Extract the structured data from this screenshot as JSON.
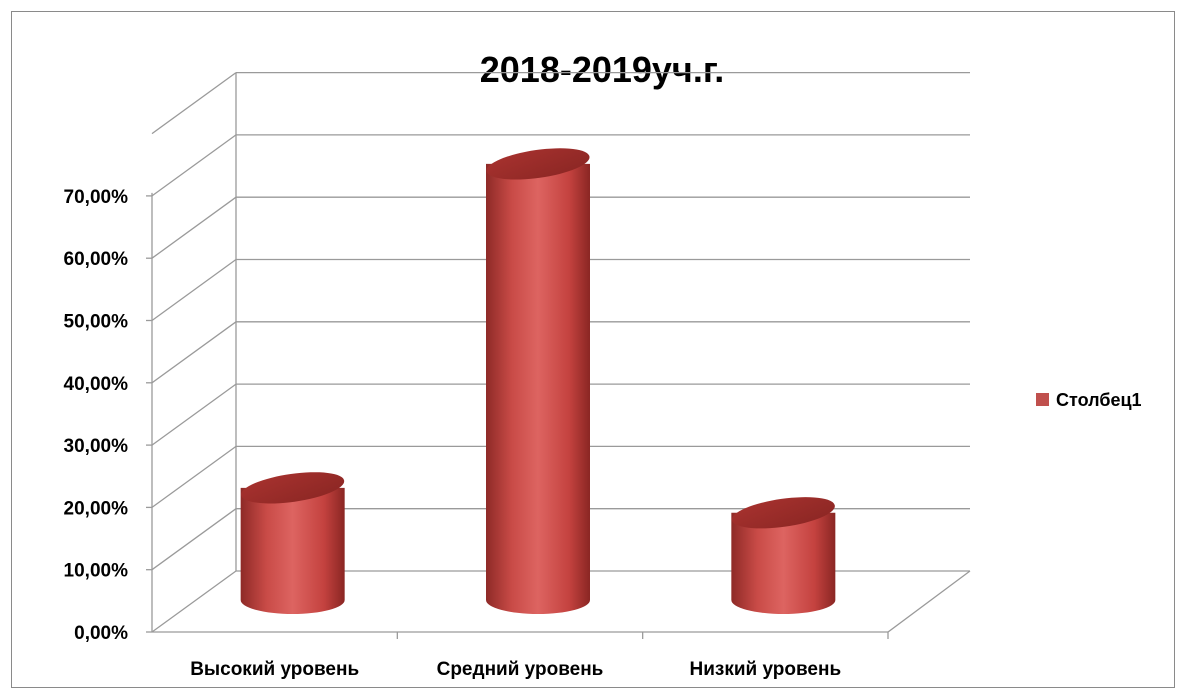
{
  "chart_data": {
    "type": "bar",
    "title": "2018-2019уч.г.",
    "categories": [
      "Высокий уровень",
      "Средний уровень",
      "Низкий уровень"
    ],
    "series": [
      {
        "name": "Столбец1",
        "values": [
          0.18,
          0.7,
          0.14
        ],
        "color": "#c0504d"
      }
    ],
    "ylim": [
      0,
      0.7
    ],
    "yticks": [
      "0,00%",
      "10,00%",
      "20,00%",
      "30,00%",
      "40,00%",
      "50,00%",
      "60,00%",
      "70,00%"
    ],
    "grid": true,
    "legend": "right",
    "style": "3d-cylinder"
  }
}
